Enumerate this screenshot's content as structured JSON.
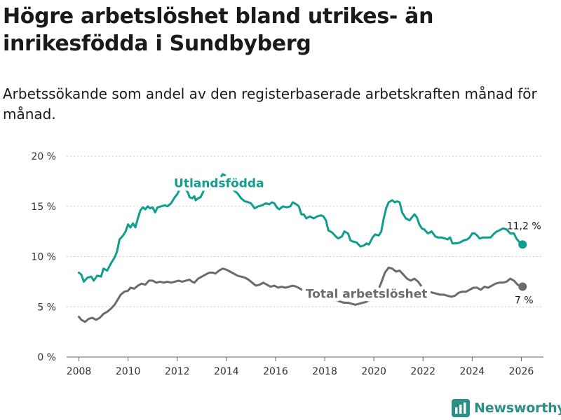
{
  "title": "Högre arbetslöshet bland utrikes- än inrikesfödda i Sundbyberg",
  "subtitle": "Arbetssökande som andel av den registerbaserade arbetskraften månad för månad.",
  "brand": {
    "name": "Newsworthy",
    "color": "#2b8f86",
    "icon": "bar-chart-logo-icon"
  },
  "chart_data": {
    "type": "line",
    "title": "Högre arbetslöshet bland utrikes- än inrikesfödda i Sundbyberg",
    "xlabel": "",
    "ylabel": "",
    "xlim": [
      2007.5,
      2026.9
    ],
    "ylim": [
      0,
      20
    ],
    "x_ticks": [
      2008,
      2010,
      2012,
      2014,
      2016,
      2018,
      2020,
      2022,
      2024,
      2026
    ],
    "x_tick_labels": [
      "2008",
      "2010",
      "2012",
      "2014",
      "2016",
      "2018",
      "2020",
      "2022",
      "2024",
      "2026"
    ],
    "y_ticks": [
      0,
      5,
      10,
      15,
      20
    ],
    "y_tick_labels": [
      "0 %",
      "5 %",
      "10 %",
      "15 %",
      "20 %"
    ],
    "grid": true,
    "series": [
      {
        "name": "Utlandsfödda",
        "color": "#0f9e8e",
        "end_label": "11,2 %",
        "points": [
          [
            2008.0,
            8.4
          ],
          [
            2008.1,
            8.2
          ],
          [
            2008.2,
            7.5
          ],
          [
            2008.35,
            7.9
          ],
          [
            2008.5,
            8.0
          ],
          [
            2008.6,
            7.6
          ],
          [
            2008.75,
            8.1
          ],
          [
            2008.9,
            8.0
          ],
          [
            2009.0,
            8.8
          ],
          [
            2009.15,
            8.6
          ],
          [
            2009.3,
            9.3
          ],
          [
            2009.45,
            9.9
          ],
          [
            2009.55,
            10.5
          ],
          [
            2009.65,
            11.7
          ],
          [
            2009.8,
            12.1
          ],
          [
            2009.9,
            12.5
          ],
          [
            2010.0,
            13.2
          ],
          [
            2010.1,
            12.9
          ],
          [
            2010.2,
            13.3
          ],
          [
            2010.3,
            12.9
          ],
          [
            2010.4,
            13.8
          ],
          [
            2010.5,
            14.6
          ],
          [
            2010.6,
            14.9
          ],
          [
            2010.7,
            14.7
          ],
          [
            2010.8,
            15.0
          ],
          [
            2010.9,
            14.8
          ],
          [
            2011.0,
            14.9
          ],
          [
            2011.1,
            14.4
          ],
          [
            2011.2,
            14.9
          ],
          [
            2011.35,
            15.0
          ],
          [
            2011.5,
            15.1
          ],
          [
            2011.6,
            15.0
          ],
          [
            2011.75,
            15.3
          ],
          [
            2011.9,
            15.9
          ],
          [
            2012.0,
            16.2
          ],
          [
            2012.1,
            16.7
          ],
          [
            2012.25,
            16.9
          ],
          [
            2012.35,
            16.7
          ],
          [
            2012.45,
            16.3
          ],
          [
            2012.5,
            15.9
          ],
          [
            2012.6,
            15.8
          ],
          [
            2012.7,
            16.0
          ],
          [
            2012.75,
            15.6
          ],
          [
            2012.85,
            15.8
          ],
          [
            2012.95,
            15.9
          ],
          [
            2013.05,
            16.4
          ],
          [
            2013.15,
            17.1
          ],
          [
            2013.3,
            17.4
          ],
          [
            2013.45,
            17.3
          ],
          [
            2013.6,
            17.9
          ],
          [
            2013.75,
            17.8
          ],
          [
            2013.85,
            18.2
          ],
          [
            2014.0,
            18.0
          ],
          [
            2014.15,
            17.2
          ],
          [
            2014.3,
            16.6
          ],
          [
            2014.45,
            16.3
          ],
          [
            2014.6,
            15.8
          ],
          [
            2014.75,
            15.5
          ],
          [
            2014.9,
            15.4
          ],
          [
            2015.0,
            15.3
          ],
          [
            2015.15,
            14.8
          ],
          [
            2015.3,
            15.0
          ],
          [
            2015.45,
            15.1
          ],
          [
            2015.6,
            15.3
          ],
          [
            2015.75,
            15.2
          ],
          [
            2015.85,
            15.4
          ],
          [
            2015.95,
            15.3
          ],
          [
            2016.05,
            14.9
          ],
          [
            2016.15,
            14.7
          ],
          [
            2016.3,
            15.0
          ],
          [
            2016.45,
            14.9
          ],
          [
            2016.6,
            15.0
          ],
          [
            2016.7,
            15.4
          ],
          [
            2016.85,
            15.2
          ],
          [
            2016.95,
            15.0
          ],
          [
            2017.05,
            14.2
          ],
          [
            2017.15,
            14.2
          ],
          [
            2017.25,
            13.8
          ],
          [
            2017.4,
            14.0
          ],
          [
            2017.55,
            13.8
          ],
          [
            2017.7,
            14.0
          ],
          [
            2017.85,
            14.1
          ],
          [
            2017.95,
            14.0
          ],
          [
            2018.05,
            13.6
          ],
          [
            2018.15,
            12.6
          ],
          [
            2018.3,
            12.4
          ],
          [
            2018.45,
            12.0
          ],
          [
            2018.55,
            11.8
          ],
          [
            2018.7,
            12.0
          ],
          [
            2018.8,
            12.5
          ],
          [
            2018.95,
            12.3
          ],
          [
            2019.05,
            11.6
          ],
          [
            2019.15,
            11.5
          ],
          [
            2019.3,
            11.4
          ],
          [
            2019.45,
            11.0
          ],
          [
            2019.6,
            11.1
          ],
          [
            2019.7,
            11.3
          ],
          [
            2019.8,
            11.2
          ],
          [
            2019.95,
            11.9
          ],
          [
            2020.05,
            12.2
          ],
          [
            2020.2,
            12.1
          ],
          [
            2020.3,
            12.5
          ],
          [
            2020.4,
            13.8
          ],
          [
            2020.5,
            14.8
          ],
          [
            2020.6,
            15.4
          ],
          [
            2020.75,
            15.6
          ],
          [
            2020.85,
            15.4
          ],
          [
            2020.95,
            15.5
          ],
          [
            2021.05,
            15.4
          ],
          [
            2021.15,
            14.4
          ],
          [
            2021.3,
            13.8
          ],
          [
            2021.45,
            13.6
          ],
          [
            2021.55,
            13.9
          ],
          [
            2021.65,
            14.2
          ],
          [
            2021.75,
            13.9
          ],
          [
            2021.85,
            13.2
          ],
          [
            2021.95,
            12.8
          ],
          [
            2022.05,
            12.7
          ],
          [
            2022.2,
            12.3
          ],
          [
            2022.35,
            12.5
          ],
          [
            2022.5,
            12.0
          ],
          [
            2022.6,
            11.9
          ],
          [
            2022.75,
            11.9
          ],
          [
            2022.9,
            11.8
          ],
          [
            2023.0,
            11.7
          ],
          [
            2023.1,
            11.9
          ],
          [
            2023.2,
            11.3
          ],
          [
            2023.35,
            11.3
          ],
          [
            2023.5,
            11.4
          ],
          [
            2023.65,
            11.6
          ],
          [
            2023.8,
            11.7
          ],
          [
            2023.9,
            11.9
          ],
          [
            2024.0,
            12.3
          ],
          [
            2024.1,
            12.3
          ],
          [
            2024.2,
            12.1
          ],
          [
            2024.3,
            11.8
          ],
          [
            2024.45,
            11.9
          ],
          [
            2024.6,
            11.9
          ],
          [
            2024.75,
            11.9
          ],
          [
            2024.9,
            12.3
          ],
          [
            2025.0,
            12.5
          ],
          [
            2025.1,
            12.6
          ],
          [
            2025.25,
            12.8
          ],
          [
            2025.4,
            12.7
          ],
          [
            2025.55,
            12.3
          ],
          [
            2025.7,
            12.3
          ],
          [
            2025.8,
            11.8
          ],
          [
            2025.9,
            11.5
          ],
          [
            2026.05,
            11.2
          ]
        ]
      },
      {
        "name": "Total arbetslöshet",
        "color": "#6b6b6b",
        "end_label": "7 %",
        "points": [
          [
            2008.0,
            4.0
          ],
          [
            2008.1,
            3.7
          ],
          [
            2008.25,
            3.5
          ],
          [
            2008.4,
            3.8
          ],
          [
            2008.55,
            3.9
          ],
          [
            2008.7,
            3.7
          ],
          [
            2008.85,
            3.9
          ],
          [
            2009.0,
            4.3
          ],
          [
            2009.15,
            4.5
          ],
          [
            2009.3,
            4.8
          ],
          [
            2009.45,
            5.2
          ],
          [
            2009.6,
            5.8
          ],
          [
            2009.7,
            6.2
          ],
          [
            2009.85,
            6.5
          ],
          [
            2010.0,
            6.6
          ],
          [
            2010.1,
            6.9
          ],
          [
            2010.25,
            6.8
          ],
          [
            2010.4,
            7.1
          ],
          [
            2010.55,
            7.3
          ],
          [
            2010.7,
            7.2
          ],
          [
            2010.85,
            7.6
          ],
          [
            2011.0,
            7.6
          ],
          [
            2011.15,
            7.4
          ],
          [
            2011.3,
            7.5
          ],
          [
            2011.45,
            7.4
          ],
          [
            2011.6,
            7.5
          ],
          [
            2011.75,
            7.4
          ],
          [
            2011.9,
            7.5
          ],
          [
            2012.05,
            7.6
          ],
          [
            2012.2,
            7.5
          ],
          [
            2012.35,
            7.6
          ],
          [
            2012.5,
            7.7
          ],
          [
            2012.6,
            7.5
          ],
          [
            2012.7,
            7.4
          ],
          [
            2012.85,
            7.8
          ],
          [
            2013.0,
            8.0
          ],
          [
            2013.15,
            8.2
          ],
          [
            2013.3,
            8.4
          ],
          [
            2013.45,
            8.4
          ],
          [
            2013.55,
            8.3
          ],
          [
            2013.7,
            8.6
          ],
          [
            2013.85,
            8.8
          ],
          [
            2014.0,
            8.7
          ],
          [
            2014.15,
            8.5
          ],
          [
            2014.3,
            8.3
          ],
          [
            2014.45,
            8.1
          ],
          [
            2014.6,
            8.0
          ],
          [
            2014.75,
            7.9
          ],
          [
            2014.9,
            7.7
          ],
          [
            2015.05,
            7.4
          ],
          [
            2015.2,
            7.1
          ],
          [
            2015.35,
            7.2
          ],
          [
            2015.5,
            7.4
          ],
          [
            2015.65,
            7.2
          ],
          [
            2015.8,
            7.0
          ],
          [
            2015.95,
            7.1
          ],
          [
            2016.1,
            6.9
          ],
          [
            2016.25,
            7.0
          ],
          [
            2016.4,
            6.9
          ],
          [
            2016.55,
            7.0
          ],
          [
            2016.7,
            7.1
          ],
          [
            2016.85,
            7.0
          ],
          [
            2017.0,
            6.8
          ],
          [
            2017.15,
            6.6
          ],
          [
            2017.3,
            6.5
          ],
          [
            2017.45,
            6.4
          ],
          [
            2017.6,
            6.3
          ],
          [
            2017.75,
            6.1
          ],
          [
            2017.9,
            6.0
          ],
          [
            2018.05,
            5.9
          ],
          [
            2018.2,
            5.8
          ],
          [
            2018.35,
            5.7
          ],
          [
            2018.5,
            5.6
          ],
          [
            2018.65,
            5.5
          ],
          [
            2018.8,
            5.4
          ],
          [
            2018.95,
            5.4
          ],
          [
            2019.1,
            5.3
          ],
          [
            2019.25,
            5.2
          ],
          [
            2019.4,
            5.3
          ],
          [
            2019.55,
            5.4
          ],
          [
            2019.7,
            5.5
          ],
          [
            2019.85,
            5.7
          ],
          [
            2020.0,
            6.0
          ],
          [
            2020.15,
            6.5
          ],
          [
            2020.3,
            7.4
          ],
          [
            2020.45,
            8.4
          ],
          [
            2020.6,
            8.9
          ],
          [
            2020.75,
            8.8
          ],
          [
            2020.9,
            8.5
          ],
          [
            2021.05,
            8.6
          ],
          [
            2021.2,
            8.2
          ],
          [
            2021.35,
            7.8
          ],
          [
            2021.5,
            7.6
          ],
          [
            2021.65,
            7.8
          ],
          [
            2021.8,
            7.5
          ],
          [
            2021.95,
            7.0
          ],
          [
            2022.1,
            6.7
          ],
          [
            2022.25,
            6.5
          ],
          [
            2022.4,
            6.4
          ],
          [
            2022.55,
            6.3
          ],
          [
            2022.7,
            6.2
          ],
          [
            2022.85,
            6.2
          ],
          [
            2023.0,
            6.1
          ],
          [
            2023.15,
            6.0
          ],
          [
            2023.3,
            6.1
          ],
          [
            2023.45,
            6.4
          ],
          [
            2023.6,
            6.5
          ],
          [
            2023.75,
            6.5
          ],
          [
            2023.9,
            6.7
          ],
          [
            2024.05,
            6.9
          ],
          [
            2024.2,
            6.9
          ],
          [
            2024.35,
            6.7
          ],
          [
            2024.5,
            7.0
          ],
          [
            2024.65,
            6.9
          ],
          [
            2024.8,
            7.1
          ],
          [
            2024.95,
            7.3
          ],
          [
            2025.1,
            7.4
          ],
          [
            2025.25,
            7.4
          ],
          [
            2025.4,
            7.5
          ],
          [
            2025.55,
            7.8
          ],
          [
            2025.7,
            7.6
          ],
          [
            2025.85,
            7.2
          ],
          [
            2026.05,
            7.0
          ]
        ]
      }
    ],
    "annotations": [
      {
        "series": "Utlandsfödda",
        "text": "Utlandsfödda",
        "at_x": 2013.7,
        "at_y": 16.9
      },
      {
        "series": "Total arbetslöshet",
        "text": "Total arbetslöshet",
        "at_x": 2019.7,
        "at_y": 5.9
      }
    ]
  }
}
